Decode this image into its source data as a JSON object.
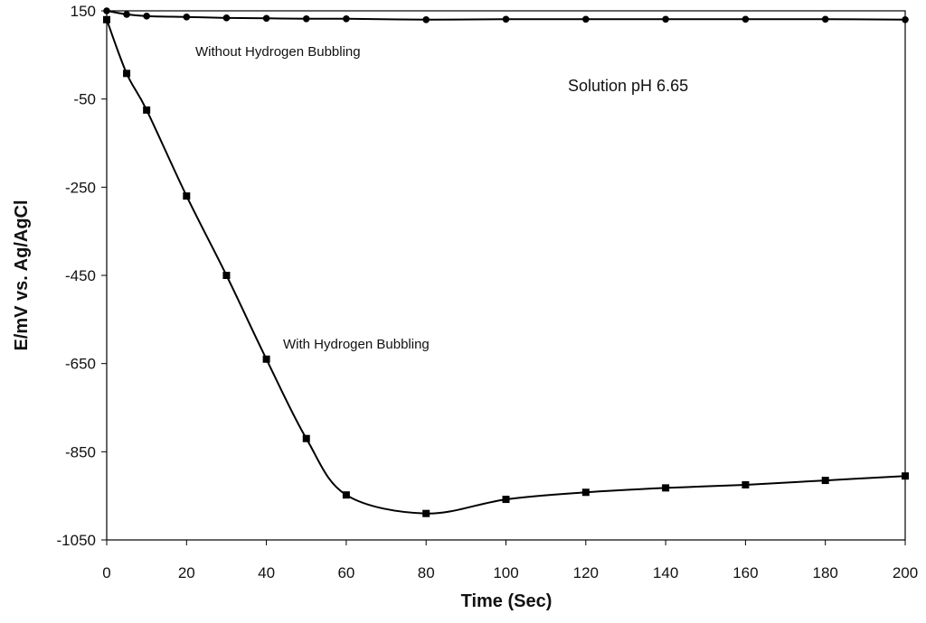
{
  "chart_data": {
    "type": "line",
    "title": "",
    "xlabel": "Time (Sec)",
    "ylabel": "E/mV vs. Ag/AgCl",
    "xlim": [
      0,
      200
    ],
    "ylim": [
      -1050,
      150
    ],
    "xticks": [
      "0",
      "20",
      "40",
      "60",
      "80",
      "100",
      "120",
      "140",
      "160",
      "180",
      "200"
    ],
    "yticks": [
      "150",
      "-50",
      "-250",
      "-450",
      "-650",
      "-850",
      "-1050"
    ],
    "grid": false,
    "annotations": {
      "without_label": "Without Hydrogen Bubbling",
      "with_label": "With Hydrogen Bubbling",
      "ph_label": "Solution pH 6.65"
    },
    "series": [
      {
        "key": "without",
        "marker": "circle",
        "x": [
          0,
          5,
          10,
          20,
          30,
          40,
          50,
          60,
          80,
          100,
          120,
          140,
          160,
          180,
          200
        ],
        "y": [
          150,
          142,
          138,
          136,
          134,
          133,
          132,
          132,
          130,
          131,
          131,
          131,
          131,
          131,
          130
        ]
      },
      {
        "key": "with",
        "marker": "square",
        "x": [
          0,
          5,
          10,
          20,
          30,
          40,
          50,
          60,
          80,
          100,
          120,
          140,
          160,
          180,
          200
        ],
        "y": [
          130,
          8,
          -75,
          -270,
          -450,
          -640,
          -820,
          -948,
          -990,
          -958,
          -942,
          -932,
          -925,
          -915,
          -905
        ]
      }
    ]
  }
}
